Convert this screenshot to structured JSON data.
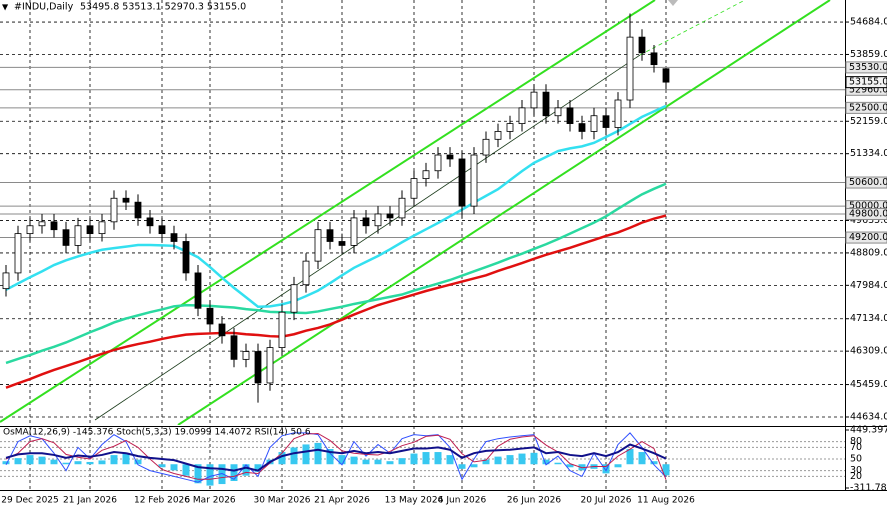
{
  "chart_data": [
    {
      "type": "candlestick",
      "title": "#INDU,Daily",
      "subtitle": "53495.8 53513.1 52970.3 53155.0",
      "categories": [
        null,
        null,
        "29 Dec 2025",
        null,
        null,
        null,
        null,
        "21 Jan 2026",
        null,
        null,
        null,
        null,
        null,
        "12 Feb 2026",
        null,
        null,
        null,
        "6 Mar 2026",
        null,
        null,
        null,
        null,
        null,
        "30 Mar 2026",
        null,
        null,
        null,
        null,
        "21 Apr 2026",
        null,
        null,
        null,
        null,
        null,
        "13 May 2026",
        null,
        null,
        null,
        "4 Jun 2026",
        null,
        null,
        null,
        null,
        null,
        "26 Jun 2026",
        null,
        null,
        null,
        null,
        null,
        "20 Jul 2026",
        null,
        null,
        null,
        null,
        "11 Aug 2026"
      ],
      "open": [
        47900,
        48300,
        49300,
        49500,
        49600,
        49400,
        49000,
        49500,
        49300,
        49600,
        50200,
        50100,
        49700,
        49500,
        49300,
        49100,
        48300,
        47400,
        47000,
        46700,
        46100,
        46300,
        45500,
        46400,
        47300,
        48000,
        48600,
        49400,
        49100,
        49000,
        49700,
        49500,
        49800,
        49700,
        50200,
        50700,
        50900,
        51300,
        51200,
        50000,
        51300,
        51700,
        51900,
        52100,
        52500,
        52900,
        52300,
        52500,
        52100,
        51900,
        52300,
        52000,
        52700,
        54300,
        53900,
        53495.8
      ],
      "high": [
        48500,
        49500,
        49700,
        49800,
        49800,
        49600,
        49700,
        49700,
        49800,
        50400,
        50400,
        50300,
        49900,
        49700,
        49500,
        49300,
        48500,
        47600,
        47200,
        46900,
        46500,
        46500,
        46600,
        47500,
        48200,
        48800,
        49600,
        49600,
        49300,
        49900,
        49900,
        50000,
        50000,
        50400,
        50900,
        51100,
        51500,
        51500,
        51400,
        51500,
        51900,
        52100,
        52300,
        52700,
        53100,
        53100,
        52700,
        52700,
        52300,
        52500,
        52500,
        52900,
        54900,
        54500,
        54100,
        53513.1
      ],
      "low": [
        47700,
        48100,
        49100,
        49300,
        49200,
        48800,
        48800,
        49100,
        49100,
        49400,
        49900,
        49500,
        49300,
        49100,
        48900,
        48100,
        47200,
        46800,
        46500,
        45900,
        45900,
        45000,
        45300,
        46200,
        47100,
        47800,
        48400,
        48900,
        48800,
        48800,
        49300,
        49300,
        49500,
        49500,
        50000,
        50500,
        50700,
        51000,
        49700,
        49800,
        51100,
        51500,
        51700,
        51900,
        52300,
        52100,
        52100,
        51900,
        51700,
        51700,
        51800,
        51800,
        52500,
        53700,
        53400,
        52970.3
      ],
      "close": [
        48300,
        49300,
        49500,
        49600,
        49400,
        49000,
        49500,
        49300,
        49600,
        50200,
        50100,
        49700,
        49500,
        49300,
        49100,
        48300,
        47400,
        47000,
        46700,
        46100,
        46300,
        45500,
        46400,
        47300,
        48000,
        48600,
        49400,
        49100,
        49000,
        49700,
        49500,
        49800,
        49700,
        50200,
        50700,
        50900,
        51300,
        51200,
        50000,
        51300,
        51700,
        51900,
        52100,
        52500,
        52900,
        52300,
        52500,
        52100,
        51900,
        52300,
        52000,
        52700,
        54300,
        53900,
        53600,
        53155
      ],
      "up_color": "#ffffff",
      "down_color": "#000000",
      "series": [
        {
          "color": "#33e0f0",
          "values": [
            47870,
            48030,
            48190,
            48340,
            48500,
            48620,
            48720,
            48810,
            48890,
            48930,
            48970,
            49010,
            49010,
            49000,
            48990,
            48850,
            48700,
            48450,
            48180,
            47920,
            47680,
            47440,
            47450,
            47500,
            47580,
            47710,
            47850,
            48040,
            48240,
            48430,
            48580,
            48730,
            48900,
            49080,
            49250,
            49410,
            49570,
            49740,
            49910,
            50090,
            50260,
            50430,
            50660,
            50890,
            51100,
            51250,
            51400,
            51470,
            51520,
            51610,
            51760,
            51910,
            52090,
            52270,
            52410,
            52550
          ]
        },
        {
          "color": "#2ad9a0",
          "values": [
            46010,
            46110,
            46210,
            46320,
            46420,
            46530,
            46660,
            46790,
            46910,
            47040,
            47140,
            47220,
            47300,
            47370,
            47450,
            47480,
            47470,
            47460,
            47440,
            47420,
            47380,
            47350,
            47310,
            47300,
            47290,
            47280,
            47320,
            47380,
            47440,
            47510,
            47570,
            47630,
            47690,
            47750,
            47850,
            47940,
            48030,
            48120,
            48230,
            48340,
            48450,
            48560,
            48680,
            48790,
            48910,
            49030,
            49160,
            49300,
            49440,
            49580,
            49740,
            49930,
            50120,
            50300,
            50440,
            50570
          ]
        },
        {
          "color": "#e01010",
          "values": [
            45380,
            45490,
            45600,
            45720,
            45830,
            45930,
            46030,
            46140,
            46240,
            46340,
            46420,
            46490,
            46550,
            46620,
            46680,
            46730,
            46750,
            46760,
            46770,
            46770,
            46740,
            46720,
            46690,
            46680,
            46740,
            46830,
            46900,
            46990,
            47110,
            47240,
            47360,
            47480,
            47570,
            47660,
            47750,
            47840,
            47920,
            48000,
            48080,
            48160,
            48240,
            48350,
            48450,
            48550,
            48660,
            48760,
            48850,
            48940,
            49040,
            49140,
            49240,
            49330,
            49450,
            49580,
            49680,
            49760
          ]
        }
      ],
      "ylim": [
        44430,
        55245
      ],
      "yticks": [
        {
          "value": 54684,
          "label": "54684.0"
        },
        {
          "value": 53859,
          "label": "53859.0"
        },
        {
          "value": 52159,
          "label": "52159.0"
        },
        {
          "value": 51334,
          "label": "51334.0"
        },
        {
          "value": 49635,
          "label": "49635.0"
        },
        {
          "value": 48809,
          "label": "48809.0"
        },
        {
          "value": 47984,
          "label": "47984.0"
        },
        {
          "value": 47134,
          "label": "47134.0"
        },
        {
          "value": 46309,
          "label": "46309.0"
        },
        {
          "value": 45459,
          "label": "45459.0"
        },
        {
          "value": 44634,
          "label": "44634.0"
        }
      ],
      "levels": [
        {
          "value": 53530,
          "label": "53530.0"
        },
        {
          "value": 52960,
          "label": "52960.0"
        },
        {
          "value": 52500,
          "label": "52500.0"
        },
        {
          "value": 50600,
          "label": "50600.0"
        },
        {
          "value": 50000,
          "label": "50000.0"
        },
        {
          "value": 49800,
          "label": "49800.0"
        },
        {
          "value": 49200,
          "label": "49200.0"
        }
      ],
      "last_price": {
        "value": 53155,
        "label": "53155.0"
      },
      "grid": true
    },
    {
      "type": "oscillator",
      "title": "OsMA(12,26,9) -145.376  Stoch(5,3,3) 19.0999 14.4072  RSI(14) 50.6",
      "series": [
        {
          "type": "bar",
          "color": "#38c8f0",
          "values": [
            40,
            80,
            120,
            100,
            60,
            20,
            40,
            30,
            50,
            120,
            140,
            60,
            0,
            -40,
            -80,
            -150,
            -250,
            -280,
            -260,
            -220,
            -150,
            -100,
            60,
            160,
            220,
            260,
            280,
            200,
            120,
            100,
            60,
            60,
            40,
            80,
            140,
            160,
            160,
            120,
            -60,
            -40,
            60,
            100,
            120,
            140,
            150,
            60,
            20,
            -40,
            -80,
            -60,
            -120,
            -40,
            200,
            160,
            40,
            -145.376
          ]
        },
        {
          "type": "line",
          "axis": "y2",
          "color": "#3050ff",
          "width": 1,
          "values": [
            40,
            80,
            90,
            85,
            60,
            30,
            70,
            50,
            75,
            92,
            80,
            40,
            30,
            25,
            20,
            15,
            10,
            20,
            25,
            15,
            40,
            20,
            70,
            90,
            95,
            95,
            92,
            60,
            40,
            80,
            55,
            75,
            60,
            85,
            92,
            90,
            92,
            70,
            15,
            50,
            80,
            85,
            88,
            90,
            92,
            40,
            55,
            30,
            20,
            60,
            30,
            75,
            95,
            70,
            40,
            19.0999
          ]
        },
        {
          "type": "line",
          "axis": "y2",
          "color": "#c02050",
          "width": 1,
          "values": [
            50,
            60,
            80,
            85,
            78,
            58,
            53,
            50,
            65,
            72,
            82,
            70,
            50,
            32,
            25,
            20,
            15,
            15,
            18,
            20,
            27,
            25,
            43,
            60,
            85,
            93,
            94,
            82,
            64,
            60,
            58,
            57,
            63,
            73,
            79,
            89,
            91,
            84,
            59,
            45,
            48,
            72,
            84,
            88,
            90,
            74,
            62,
            42,
            35,
            37,
            37,
            55,
            67,
            80,
            68,
            14.4072
          ]
        },
        {
          "type": "line",
          "axis": "y2",
          "color": "#10108a",
          "width": 2,
          "values": [
            52,
            58,
            60,
            60,
            57,
            52,
            56,
            54,
            57,
            62,
            60,
            55,
            52,
            50,
            48,
            42,
            36,
            34,
            33,
            30,
            35,
            30,
            45,
            55,
            60,
            63,
            66,
            62,
            60,
            64,
            60,
            62,
            60,
            64,
            68,
            68,
            70,
            66,
            52,
            60,
            64,
            65,
            66,
            68,
            70,
            60,
            62,
            57,
            55,
            60,
            55,
            62,
            75,
            68,
            60,
            50.6
          ]
        }
      ],
      "ylim": [
        -311.789,
        449.397
      ],
      "yticks": [
        449.397,
        -311.789
      ],
      "y2lim": [
        0,
        100
      ],
      "y2ticks": [
        80,
        70,
        50,
        30,
        20
      ]
    }
  ]
}
